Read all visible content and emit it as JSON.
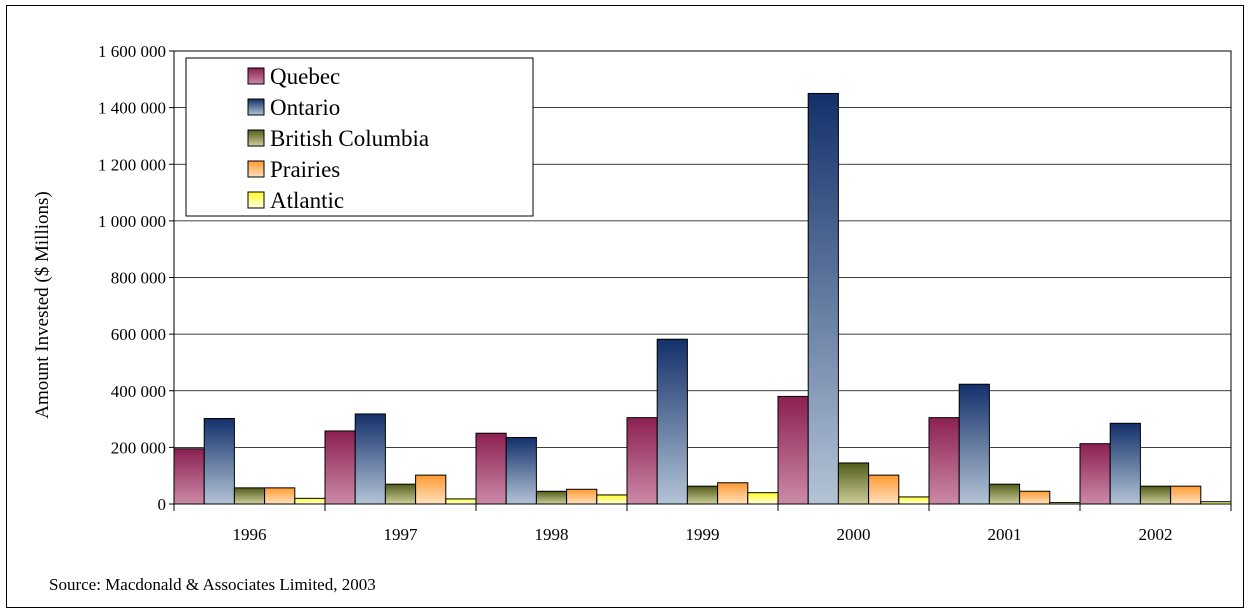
{
  "source_note": "Source: Macdonald & Associates Limited, 2003",
  "colors": {
    "Quebec": [
      "#8b2052",
      "#cc8aa8"
    ],
    "Ontario": [
      "#13306a",
      "#b4c4d6"
    ],
    "British Columbia": [
      "#515d1a",
      "#cfcf9c"
    ],
    "Prairies": [
      "#ff9a30",
      "#ffe2c0"
    ],
    "Atlantic": [
      "#ffff20",
      "#ffffe8"
    ]
  },
  "chart_data": {
    "type": "bar",
    "title": "",
    "xlabel": "",
    "ylabel": "Amount Invested ($ Millions)",
    "ylim": [
      0,
      1600000
    ],
    "yticks": [
      0,
      200000,
      400000,
      600000,
      800000,
      1000000,
      1200000,
      1400000,
      1600000
    ],
    "ytick_labels": [
      "0",
      "200 000",
      "400 000",
      "600 000",
      "800 000",
      "1 000 000",
      "1 200 000",
      "1 400 000",
      "1 600 000"
    ],
    "grid": true,
    "legend_position": "top-left",
    "categories": [
      "1996",
      "1997",
      "1998",
      "1999",
      "2000",
      "2001",
      "2002"
    ],
    "series": [
      {
        "name": "Quebec",
        "values": [
          195000,
          258000,
          250000,
          305000,
          380000,
          305000,
          213000
        ]
      },
      {
        "name": "Ontario",
        "values": [
          302000,
          318000,
          235000,
          582000,
          1450000,
          423000,
          285000
        ]
      },
      {
        "name": "British Columbia",
        "values": [
          57000,
          70000,
          45000,
          63000,
          145000,
          70000,
          63000
        ]
      },
      {
        "name": "Prairies",
        "values": [
          57000,
          102000,
          52000,
          75000,
          102000,
          45000,
          63000
        ]
      },
      {
        "name": "Atlantic",
        "values": [
          20000,
          18000,
          32000,
          40000,
          25000,
          5000,
          8000
        ]
      }
    ]
  }
}
